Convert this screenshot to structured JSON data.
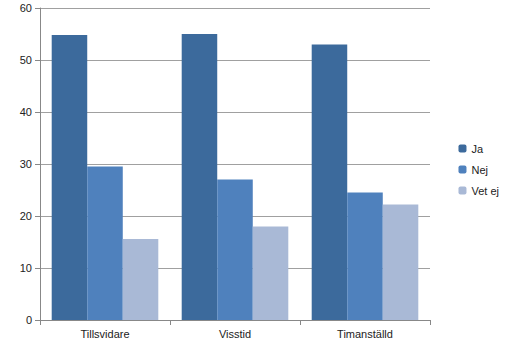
{
  "chart_data": {
    "type": "bar",
    "categories": [
      "Tillsvidare",
      "Visstid",
      "Timanställd"
    ],
    "series": [
      {
        "name": "Ja",
        "color": "#3c6a9c",
        "values": [
          54.8,
          55,
          53
        ]
      },
      {
        "name": "Nej",
        "color": "#4f81bd",
        "values": [
          29.5,
          27,
          24.5
        ]
      },
      {
        "name": "Vet ej",
        "color": "#a9b9d6",
        "values": [
          15.6,
          18,
          22.2
        ]
      }
    ],
    "ylim": [
      0,
      60
    ],
    "yticks": [
      0,
      10,
      20,
      30,
      40,
      50,
      60
    ],
    "grid": true,
    "legend": "right"
  }
}
